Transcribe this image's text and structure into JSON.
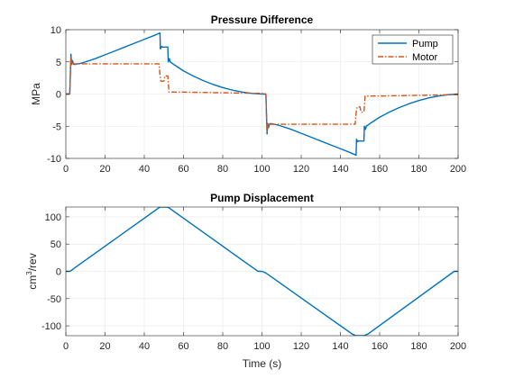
{
  "chart_data": [
    {
      "type": "line",
      "title": "Pressure Difference",
      "xlabel": "",
      "ylabel": "MPa",
      "xlim": [
        0,
        200
      ],
      "ylim": [
        -10,
        10
      ],
      "xticks": [
        0,
        20,
        40,
        60,
        80,
        100,
        120,
        140,
        160,
        180,
        200
      ],
      "yticks": [
        -10,
        -5,
        0,
        5,
        10
      ],
      "grid": true,
      "legend": "top-right",
      "series": [
        {
          "name": "Pump",
          "color": "#0072BD",
          "style": "solid",
          "x": [
            0,
            2,
            2.6,
            3,
            3.4,
            4,
            5,
            6,
            8,
            10,
            15,
            20,
            25,
            30,
            35,
            40,
            45,
            48,
            48.2,
            48.8,
            49.2,
            52,
            52.2,
            52.8,
            53.2,
            55,
            60,
            65,
            70,
            75,
            80,
            85,
            90,
            95,
            100,
            102,
            102.6,
            103,
            103.4,
            104,
            105,
            106,
            108,
            110,
            115,
            120,
            125,
            130,
            135,
            140,
            145,
            148,
            148.2,
            148.8,
            149.2,
            152,
            152.2,
            152.8,
            153.2,
            155,
            160,
            165,
            170,
            175,
            180,
            185,
            190,
            195,
            200
          ],
          "y": [
            0,
            0,
            6.2,
            4.6,
            5.2,
            4.6,
            4.6,
            4.7,
            4.8,
            5.0,
            5.5,
            6.1,
            6.7,
            7.3,
            7.9,
            8.5,
            9.1,
            9.5,
            7.0,
            7.4,
            7.3,
            7.3,
            5.0,
            5.5,
            5.0,
            4.6,
            3.6,
            2.8,
            2.1,
            1.5,
            1.0,
            0.6,
            0.3,
            0.1,
            0.0,
            0.0,
            -6.2,
            -4.6,
            -5.2,
            -4.6,
            -4.6,
            -4.7,
            -4.8,
            -5.0,
            -5.5,
            -6.1,
            -6.7,
            -7.3,
            -7.9,
            -8.5,
            -9.1,
            -9.5,
            -7.0,
            -7.4,
            -7.3,
            -7.3,
            -5.0,
            -5.5,
            -5.0,
            -4.6,
            -3.6,
            -2.8,
            -2.1,
            -1.5,
            -1.0,
            -0.6,
            -0.3,
            -0.1,
            0.0
          ]
        },
        {
          "name": "Motor",
          "color": "#D95319",
          "style": "dashdot",
          "x": [
            0,
            2,
            2.6,
            3,
            3.4,
            4,
            10,
            20,
            30,
            40,
            47.5,
            48,
            48.5,
            50,
            50.5,
            52,
            52.6,
            55,
            60,
            80,
            100,
            102,
            102.6,
            103,
            103.4,
            104,
            110,
            120,
            130,
            140,
            147.5,
            148,
            148.5,
            150,
            150.5,
            152,
            152.6,
            155,
            160,
            180,
            200
          ],
          "y": [
            0,
            0,
            5.8,
            4.6,
            5.0,
            4.7,
            4.7,
            4.7,
            4.7,
            4.7,
            4.7,
            3.0,
            2.0,
            2.0,
            2.8,
            2.8,
            0.3,
            0.3,
            0.3,
            0.2,
            0.1,
            0.0,
            -5.8,
            -4.6,
            -5.0,
            -4.7,
            -4.7,
            -4.7,
            -4.7,
            -4.7,
            -4.7,
            -3.0,
            -2.0,
            -2.0,
            -2.8,
            -2.8,
            -0.3,
            -0.3,
            -0.3,
            -0.2,
            -0.1
          ]
        }
      ]
    },
    {
      "type": "line",
      "title": "Pump Displacement",
      "xlabel": "Time (s)",
      "ylabel": "cm³/rev",
      "ylabel_base": "cm",
      "ylabel_sup": "3",
      "ylabel_rest": "/rev",
      "xlim": [
        0,
        200
      ],
      "ylim": [
        -118,
        118
      ],
      "xticks": [
        0,
        20,
        40,
        60,
        80,
        100,
        120,
        140,
        160,
        180,
        200
      ],
      "yticks": [
        -100,
        -50,
        0,
        50,
        100
      ],
      "grid": true,
      "series": [
        {
          "name": "",
          "color": "#0072BD",
          "style": "solid",
          "x": [
            0,
            2,
            3,
            4,
            48,
            52,
            96,
            98,
            100,
            102,
            146,
            148,
            152,
            154,
            198,
            200
          ],
          "y": [
            0,
            0,
            2,
            5,
            118,
            118,
            5,
            0,
            0,
            -3,
            -115,
            -118,
            -118,
            -115,
            0,
            0
          ]
        }
      ]
    }
  ]
}
